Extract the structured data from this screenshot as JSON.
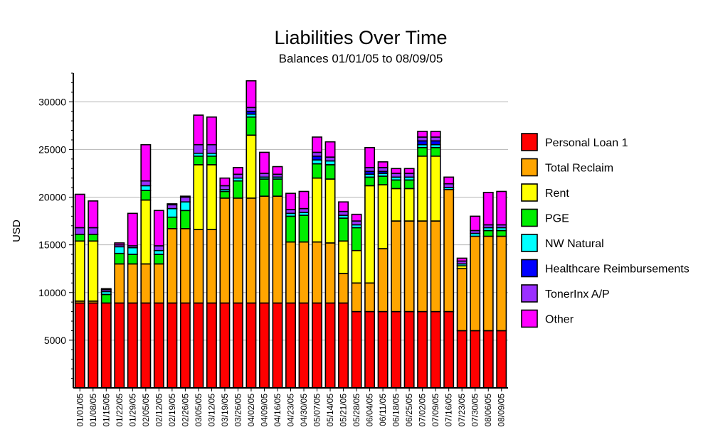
{
  "chart_data": {
    "type": "bar",
    "stacked": true,
    "title": "Liabilities Over Time",
    "subtitle": "Balances 01/01/05 to 08/09/05",
    "xlabel": "",
    "ylabel": "USD",
    "ylim": [
      0,
      33000
    ],
    "yticks": [
      5000,
      10000,
      15000,
      20000,
      25000,
      30000
    ],
    "grid": true,
    "legend_position": "right",
    "categories": [
      "01/01/05",
      "01/08/05",
      "01/15/05",
      "01/22/05",
      "01/29/05",
      "02/05/05",
      "02/12/05",
      "02/19/05",
      "02/26/05",
      "03/05/05",
      "03/12/05",
      "03/19/05",
      "03/26/05",
      "04/02/05",
      "04/09/05",
      "04/16/05",
      "04/23/05",
      "04/30/05",
      "05/07/05",
      "05/14/05",
      "05/21/05",
      "05/28/05",
      "06/04/05",
      "06/11/05",
      "06/18/05",
      "06/25/05",
      "07/02/05",
      "07/09/05",
      "07/16/05",
      "07/23/05",
      "07/30/05",
      "08/06/05",
      "08/09/05"
    ],
    "series": [
      {
        "name": "Personal Loan 1",
        "color": "#ff0000",
        "values": [
          8900,
          8900,
          8900,
          8900,
          8900,
          8900,
          8900,
          8900,
          8900,
          8900,
          8900,
          8900,
          8900,
          8900,
          8900,
          8900,
          8900,
          8900,
          8900,
          8900,
          8900,
          8000,
          8000,
          8000,
          8000,
          8000,
          8000,
          8000,
          8000,
          6000,
          6000,
          6000,
          6000
        ]
      },
      {
        "name": "Total Reclaim",
        "color": "#ffa500",
        "values": [
          200,
          200,
          0,
          4100,
          4100,
          4100,
          4100,
          7800,
          7800,
          7700,
          7700,
          11000,
          11000,
          11000,
          11200,
          11200,
          6400,
          6400,
          6400,
          6300,
          3100,
          3000,
          3000,
          6600,
          9500,
          9500,
          9500,
          9500,
          12800,
          6500,
          9900,
          9900,
          9900
        ]
      },
      {
        "name": "Rent",
        "color": "#ffff00",
        "values": [
          6300,
          6300,
          0,
          0,
          0,
          6700,
          0,
          0,
          0,
          6800,
          6800,
          0,
          0,
          6600,
          0,
          0,
          0,
          0,
          6700,
          6700,
          3400,
          3400,
          10200,
          6700,
          3400,
          3400,
          6800,
          6800,
          0,
          300,
          0,
          0,
          0
        ]
      },
      {
        "name": "PGE",
        "color": "#00ee00",
        "values": [
          700,
          700,
          900,
          1100,
          1000,
          1000,
          1000,
          1200,
          1900,
          900,
          900,
          700,
          1800,
          1900,
          1800,
          1800,
          2700,
          2800,
          1500,
          1500,
          2400,
          2400,
          900,
          900,
          900,
          900,
          900,
          900,
          0,
          0,
          0,
          600,
          600
        ]
      },
      {
        "name": "NW Natural",
        "color": "#00ffff",
        "values": [
          0,
          0,
          300,
          700,
          700,
          500,
          400,
          900,
          900,
          300,
          300,
          200,
          300,
          300,
          200,
          200,
          300,
          300,
          400,
          400,
          300,
          300,
          300,
          300,
          300,
          300,
          300,
          300,
          200,
          200,
          300,
          300,
          300
        ]
      },
      {
        "name": "Healthcare Reimbursements",
        "color": "#0000ff",
        "values": [
          0,
          0,
          0,
          0,
          0,
          0,
          0,
          0,
          0,
          0,
          0,
          0,
          0,
          300,
          0,
          0,
          0,
          0,
          400,
          0,
          0,
          0,
          300,
          200,
          0,
          0,
          400,
          400,
          0,
          0,
          0,
          0,
          0
        ]
      },
      {
        "name": "TonerInx A/P",
        "color": "#9b30ff",
        "values": [
          700,
          700,
          200,
          200,
          200,
          500,
          500,
          400,
          500,
          900,
          900,
          400,
          400,
          400,
          400,
          300,
          400,
          400,
          400,
          400,
          400,
          400,
          400,
          400,
          400,
          400,
          400,
          400,
          400,
          300,
          300,
          300,
          300
        ]
      },
      {
        "name": "Other",
        "color": "#ff00ff",
        "values": [
          3500,
          2800,
          100,
          200,
          3400,
          3800,
          3700,
          100,
          100,
          3100,
          2900,
          800,
          700,
          2800,
          2200,
          800,
          1700,
          1800,
          1600,
          1600,
          1000,
          700,
          2100,
          600,
          500,
          500,
          600,
          600,
          700,
          300,
          1500,
          3400,
          3500
        ]
      }
    ]
  }
}
